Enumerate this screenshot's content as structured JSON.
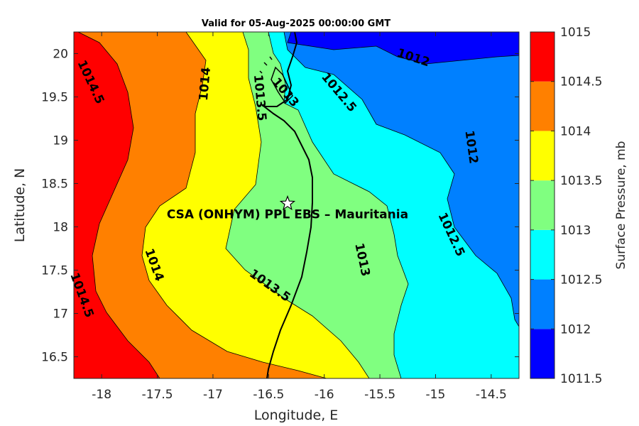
{
  "chart_data": {
    "type": "contour",
    "title": "Valid for 05-Aug-2025 00:00:00 GMT",
    "xlabel": "Longitude, E",
    "ylabel": "Latitude, N",
    "xlim": [
      -18.25,
      -14.25
    ],
    "ylim": [
      16.25,
      20.25
    ],
    "xticks": [
      -18,
      -17.5,
      -17,
      -16.5,
      -16,
      -15.5,
      -15,
      -14.5
    ],
    "xtick_labels": [
      "-18",
      "-17.5",
      "-17",
      "-16.5",
      "-16",
      "-15.5",
      "-15",
      "-14.5"
    ],
    "yticks": [
      16.5,
      17,
      17.5,
      18,
      18.5,
      19,
      19.5,
      20
    ],
    "ytick_labels": [
      "16.5",
      "17",
      "17.5",
      "18",
      "18.5",
      "19",
      "19.5",
      "20"
    ],
    "colorbar": {
      "label": "Surface Pressure, mb",
      "levels": [
        1011.5,
        1012,
        1012.5,
        1013,
        1013.5,
        1014,
        1014.5,
        1015
      ],
      "level_labels": [
        "1011.5",
        "1012",
        "1012.5",
        "1013",
        "1013.5",
        "1014",
        "1014.5",
        "1015"
      ],
      "colors": [
        "#0000ff",
        "#0080ff",
        "#00ffff",
        "#80ff80",
        "#ffff00",
        "#ff8000",
        "#ff0000",
        "#800000"
      ]
    },
    "contour_labels": [
      {
        "text": "1014.5",
        "lon": -18.1,
        "lat": 19.67,
        "angle": 65
      },
      {
        "text": "1014",
        "lon": -17.07,
        "lat": 19.65,
        "angle": -85
      },
      {
        "text": "1013.5",
        "lon": -16.58,
        "lat": 19.49,
        "angle": 85
      },
      {
        "text": "1013",
        "lon": -16.35,
        "lat": 19.55,
        "angle": 50
      },
      {
        "text": "1012.5",
        "lon": -15.87,
        "lat": 19.55,
        "angle": 50
      },
      {
        "text": "1012",
        "lon": -15.2,
        "lat": 19.95,
        "angle": 18
      },
      {
        "text": "1012",
        "lon": -14.68,
        "lat": 18.92,
        "angle": 82
      },
      {
        "text": "1012.5",
        "lon": -14.86,
        "lat": 17.91,
        "angle": 65
      },
      {
        "text": "1013",
        "lon": -15.66,
        "lat": 17.62,
        "angle": 78
      },
      {
        "text": "1013.5",
        "lon": -16.49,
        "lat": 17.32,
        "angle": 35
      },
      {
        "text": "1014",
        "lon": -17.53,
        "lat": 17.56,
        "angle": 70
      },
      {
        "text": "1014.5",
        "lon": -18.18,
        "lat": 17.21,
        "angle": 70
      }
    ],
    "site": {
      "name": "CSA (ONHYM) PPL EBS  – Mauritania",
      "lon": -16.33,
      "lat": 18.27,
      "marker": "star"
    }
  }
}
